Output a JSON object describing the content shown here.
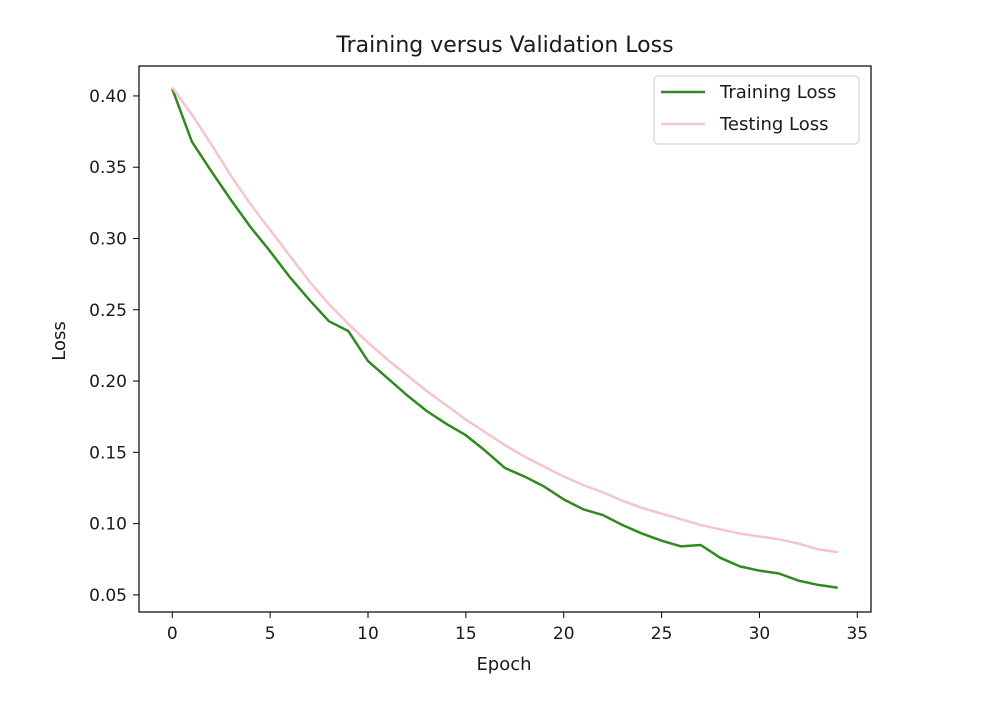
{
  "chart_data": {
    "type": "line",
    "title": "Training versus Validation Loss",
    "xlabel": "Epoch",
    "ylabel": "Loss",
    "xlim": [
      -1.7,
      35.7
    ],
    "ylim": [
      0.038,
      0.421
    ],
    "x_ticks": [
      0,
      5,
      10,
      15,
      20,
      25,
      30,
      35
    ],
    "x_tick_labels": [
      "0",
      "5",
      "10",
      "15",
      "20",
      "25",
      "30",
      "35"
    ],
    "y_ticks": [
      0.05,
      0.1,
      0.15,
      0.2,
      0.25,
      0.3,
      0.35,
      0.4
    ],
    "y_tick_labels": [
      "0.05",
      "0.10",
      "0.15",
      "0.20",
      "0.25",
      "0.30",
      "0.35",
      "0.40"
    ],
    "grid": false,
    "legend_position": "top-right",
    "x": [
      0,
      1,
      2,
      3,
      4,
      5,
      6,
      7,
      8,
      9,
      10,
      11,
      12,
      13,
      14,
      15,
      16,
      17,
      18,
      19,
      20,
      21,
      22,
      23,
      24,
      25,
      26,
      27,
      28,
      29,
      30,
      31,
      32,
      33,
      34
    ],
    "series": [
      {
        "name": "Training Loss",
        "color": "#2f8a1f",
        "values": [
          0.405,
          0.368,
          0.347,
          0.327,
          0.308,
          0.291,
          0.273,
          0.257,
          0.242,
          0.235,
          0.214,
          0.202,
          0.19,
          0.179,
          0.17,
          0.162,
          0.151,
          0.139,
          0.133,
          0.126,
          0.117,
          0.11,
          0.106,
          0.099,
          0.093,
          0.088,
          0.084,
          0.085,
          0.076,
          0.07,
          0.067,
          0.065,
          0.06,
          0.057,
          0.055
        ]
      },
      {
        "name": "Testing Loss",
        "color": "#f6c4cc",
        "values": [
          0.406,
          0.387,
          0.366,
          0.344,
          0.324,
          0.306,
          0.288,
          0.27,
          0.254,
          0.24,
          0.227,
          0.215,
          0.204,
          0.193,
          0.183,
          0.173,
          0.164,
          0.155,
          0.147,
          0.14,
          0.133,
          0.127,
          0.122,
          0.116,
          0.111,
          0.107,
          0.103,
          0.099,
          0.096,
          0.093,
          0.091,
          0.089,
          0.086,
          0.082,
          0.08
        ]
      }
    ]
  }
}
